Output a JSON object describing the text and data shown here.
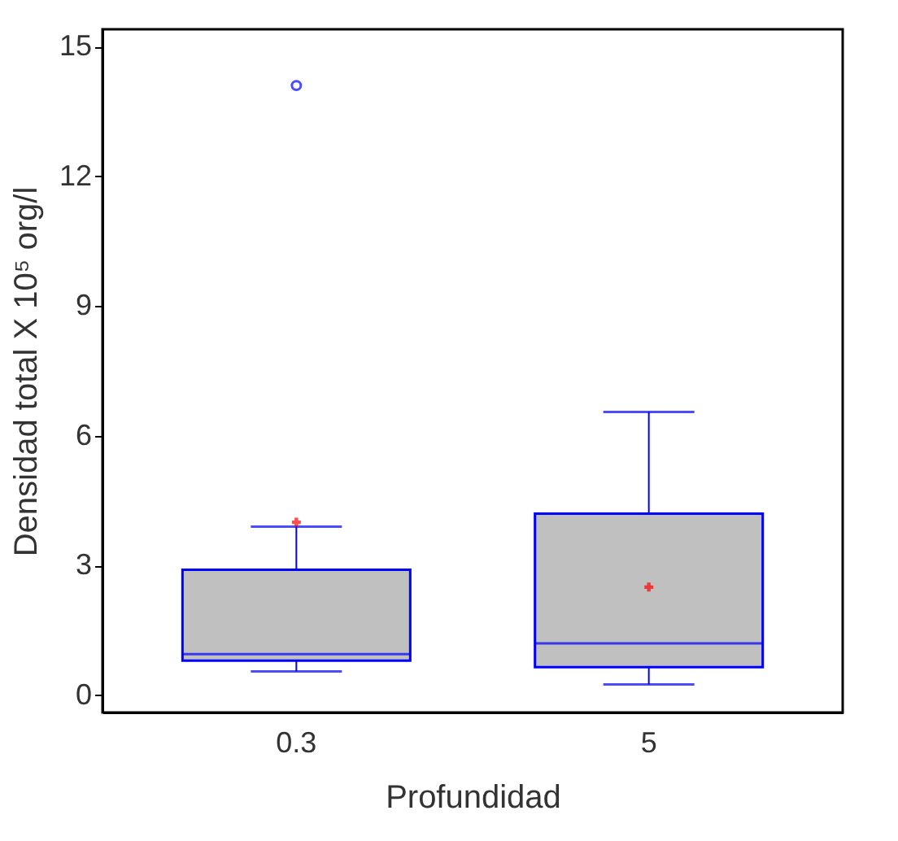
{
  "chart_data": {
    "type": "box",
    "xlabel": "Profundidad",
    "ylabel": "Densidad total   X 10⁵ org/l",
    "categories": [
      "0.3",
      "5"
    ],
    "ylim": [
      -0.4,
      15.4
    ],
    "yticks": [
      0,
      3,
      6,
      9,
      12,
      15
    ],
    "series": [
      {
        "color": "#0000ff",
        "boxes": [
          {
            "low": 0.55,
            "q1": 0.8,
            "median": 0.95,
            "q3": 2.9,
            "high": 3.9,
            "mean": 4.0,
            "outliers": [
              14.1
            ]
          },
          {
            "low": 0.25,
            "q1": 0.65,
            "median": 1.2,
            "q3": 4.2,
            "high": 6.55,
            "mean": 2.5
          }
        ]
      }
    ]
  }
}
